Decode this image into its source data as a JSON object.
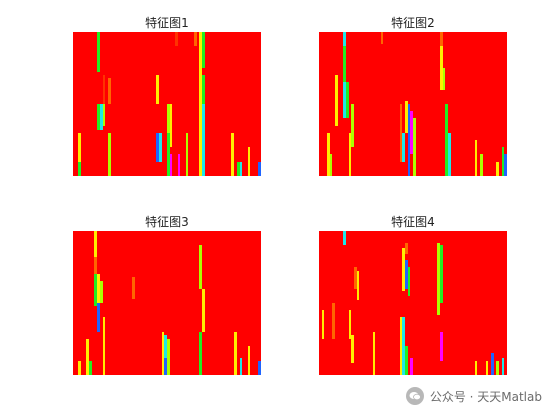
{
  "chart_data": [
    {
      "type": "heatmap",
      "title": "特征图1",
      "background_color": "#ff0000",
      "columns": 70,
      "rows": 100,
      "cells": [
        {
          "col": 9,
          "row": 0,
          "len": 28,
          "color": "#22ee22"
        },
        {
          "col": 38,
          "row": 0,
          "len": 10,
          "color": "#ff3300"
        },
        {
          "col": 45,
          "row": 0,
          "len": 10,
          "color": "#ff6600"
        },
        {
          "col": 47,
          "row": 0,
          "len": 100,
          "color": "#ffee00"
        },
        {
          "col": 48,
          "row": 0,
          "len": 25,
          "color": "#22ee22"
        },
        {
          "col": 11,
          "row": 30,
          "len": 20,
          "color": "#ff3300"
        },
        {
          "col": 13,
          "row": 32,
          "len": 18,
          "color": "#ff6600"
        },
        {
          "col": 31,
          "row": 30,
          "len": 20,
          "color": "#ffee00"
        },
        {
          "col": 48,
          "row": 30,
          "len": 22,
          "color": "#22ee22"
        },
        {
          "col": 9,
          "row": 50,
          "len": 18,
          "color": "#22ee22"
        },
        {
          "col": 10,
          "row": 50,
          "len": 18,
          "color": "#1ee8e8"
        },
        {
          "col": 11,
          "row": 50,
          "len": 15,
          "color": "#aaff00"
        },
        {
          "col": 35,
          "row": 50,
          "len": 20,
          "color": "#aaff00"
        },
        {
          "col": 36,
          "row": 50,
          "len": 30,
          "color": "#ffee00"
        },
        {
          "col": 48,
          "row": 50,
          "len": 50,
          "color": "#1ee8e8"
        },
        {
          "col": 2,
          "row": 70,
          "len": 30,
          "color": "#ffee00"
        },
        {
          "col": 13,
          "row": 70,
          "len": 30,
          "color": "#aaff00"
        },
        {
          "col": 31,
          "row": 70,
          "len": 20,
          "color": "#1e64ff"
        },
        {
          "col": 32,
          "row": 70,
          "len": 20,
          "color": "#1ee8e8"
        },
        {
          "col": 35,
          "row": 70,
          "len": 30,
          "color": "#22ee22"
        },
        {
          "col": 36,
          "row": 85,
          "len": 15,
          "color": "#ff00ff"
        },
        {
          "col": 42,
          "row": 70,
          "len": 30,
          "color": "#aaff00"
        },
        {
          "col": 59,
          "row": 70,
          "len": 30,
          "color": "#ffee00"
        },
        {
          "col": 65,
          "row": 80,
          "len": 20,
          "color": "#ffee00"
        },
        {
          "col": 2,
          "row": 90,
          "len": 10,
          "color": "#22ee22"
        },
        {
          "col": 39,
          "row": 85,
          "len": 15,
          "color": "#ff00ff"
        },
        {
          "col": 61,
          "row": 90,
          "len": 10,
          "color": "#22ee22"
        },
        {
          "col": 62,
          "row": 90,
          "len": 10,
          "color": "#1ee8e8"
        },
        {
          "col": 69,
          "row": 90,
          "len": 10,
          "color": "#1e64ff"
        }
      ]
    },
    {
      "type": "heatmap",
      "title": "特征图2",
      "background_color": "#ff0000",
      "columns": 70,
      "rows": 100,
      "cells": [
        {
          "col": 9,
          "row": 0,
          "len": 10,
          "color": "#1ee8e8"
        },
        {
          "col": 9,
          "row": 10,
          "len": 25,
          "color": "#22ee22"
        },
        {
          "col": 23,
          "row": 0,
          "len": 8,
          "color": "#ff6600"
        },
        {
          "col": 45,
          "row": 0,
          "len": 10,
          "color": "#ff6600"
        },
        {
          "col": 45,
          "row": 10,
          "len": 30,
          "color": "#ffee00"
        },
        {
          "col": 46,
          "row": 25,
          "len": 15,
          "color": "#aaff00"
        },
        {
          "col": 6,
          "row": 30,
          "len": 35,
          "color": "#ffee00"
        },
        {
          "col": 9,
          "row": 35,
          "len": 25,
          "color": "#1ee8e8"
        },
        {
          "col": 10,
          "row": 35,
          "len": 25,
          "color": "#22ee22"
        },
        {
          "col": 12,
          "row": 50,
          "len": 30,
          "color": "#aaff00"
        },
        {
          "col": 11,
          "row": 70,
          "len": 30,
          "color": "#ffee00"
        },
        {
          "col": 30,
          "row": 50,
          "len": 40,
          "color": "#ff6600"
        },
        {
          "col": 32,
          "row": 48,
          "len": 22,
          "color": "#ffee00"
        },
        {
          "col": 33,
          "row": 50,
          "len": 50,
          "color": "#1e64ff"
        },
        {
          "col": 34,
          "row": 55,
          "len": 30,
          "color": "#ff00ff"
        },
        {
          "col": 31,
          "row": 70,
          "len": 20,
          "color": "#1ee8e8"
        },
        {
          "col": 35,
          "row": 60,
          "len": 40,
          "color": "#aaff00"
        },
        {
          "col": 47,
          "row": 50,
          "len": 50,
          "color": "#22ee22"
        },
        {
          "col": 3,
          "row": 70,
          "len": 30,
          "color": "#ffee00"
        },
        {
          "col": 4,
          "row": 85,
          "len": 15,
          "color": "#aaff00"
        },
        {
          "col": 48,
          "row": 70,
          "len": 30,
          "color": "#1ee8e8"
        },
        {
          "col": 58,
          "row": 75,
          "len": 25,
          "color": "#ffee00"
        },
        {
          "col": 60,
          "row": 85,
          "len": 15,
          "color": "#aaff00"
        },
        {
          "col": 66,
          "row": 90,
          "len": 10,
          "color": "#ffee00"
        },
        {
          "col": 68,
          "row": 80,
          "len": 20,
          "color": "#22ee22"
        },
        {
          "col": 69,
          "row": 85,
          "len": 15,
          "color": "#1e64ff"
        }
      ]
    },
    {
      "type": "heatmap",
      "title": "特征图3",
      "background_color": "#ff0000",
      "columns": 70,
      "rows": 100,
      "cells": [
        {
          "col": 8,
          "row": 0,
          "len": 18,
          "color": "#ffee00"
        },
        {
          "col": 8,
          "row": 18,
          "len": 12,
          "color": "#ff6600"
        },
        {
          "col": 47,
          "row": 10,
          "len": 30,
          "color": "#aaff00"
        },
        {
          "col": 8,
          "row": 30,
          "len": 22,
          "color": "#22ee22"
        },
        {
          "col": 9,
          "row": 30,
          "len": 20,
          "color": "#ffee00"
        },
        {
          "col": 10,
          "row": 35,
          "len": 15,
          "color": "#aaff00"
        },
        {
          "col": 22,
          "row": 32,
          "len": 15,
          "color": "#ff6600"
        },
        {
          "col": 48,
          "row": 40,
          "len": 30,
          "color": "#ffee00"
        },
        {
          "col": 9,
          "row": 50,
          "len": 20,
          "color": "#1e64ff"
        },
        {
          "col": 11,
          "row": 60,
          "len": 40,
          "color": "#ffee00"
        },
        {
          "col": 33,
          "row": 70,
          "len": 30,
          "color": "#ffee00"
        },
        {
          "col": 34,
          "row": 72,
          "len": 20,
          "color": "#1ee8e8"
        },
        {
          "col": 35,
          "row": 75,
          "len": 25,
          "color": "#aaff00"
        },
        {
          "col": 47,
          "row": 70,
          "len": 30,
          "color": "#22ee22"
        },
        {
          "col": 5,
          "row": 75,
          "len": 25,
          "color": "#ffee00"
        },
        {
          "col": 34,
          "row": 88,
          "len": 12,
          "color": "#1e64ff"
        },
        {
          "col": 60,
          "row": 70,
          "len": 30,
          "color": "#ffee00"
        },
        {
          "col": 65,
          "row": 80,
          "len": 20,
          "color": "#ffee00"
        },
        {
          "col": 2,
          "row": 90,
          "len": 10,
          "color": "#ffee00"
        },
        {
          "col": 6,
          "row": 90,
          "len": 10,
          "color": "#22ee22"
        },
        {
          "col": 62,
          "row": 88,
          "len": 12,
          "color": "#1ee8e8"
        },
        {
          "col": 69,
          "row": 90,
          "len": 10,
          "color": "#1e64ff"
        }
      ]
    },
    {
      "type": "heatmap",
      "title": "特征图4",
      "background_color": "#ff0000",
      "columns": 70,
      "rows": 100,
      "cells": [
        {
          "col": 9,
          "row": 0,
          "len": 10,
          "color": "#1ee8e8"
        },
        {
          "col": 32,
          "row": 8,
          "len": 8,
          "color": "#ff6600"
        },
        {
          "col": 44,
          "row": 8,
          "len": 50,
          "color": "#aaff00"
        },
        {
          "col": 45,
          "row": 10,
          "len": 40,
          "color": "#22ee22"
        },
        {
          "col": 31,
          "row": 12,
          "len": 30,
          "color": "#ffee00"
        },
        {
          "col": 32,
          "row": 20,
          "len": 20,
          "color": "#1e64ff"
        },
        {
          "col": 33,
          "row": 25,
          "len": 20,
          "color": "#22ee22"
        },
        {
          "col": 13,
          "row": 25,
          "len": 15,
          "color": "#ff6600"
        },
        {
          "col": 14,
          "row": 28,
          "len": 20,
          "color": "#ffee00"
        },
        {
          "col": 1,
          "row": 55,
          "len": 20,
          "color": "#ffee00"
        },
        {
          "col": 5,
          "row": 50,
          "len": 25,
          "color": "#ff6600"
        },
        {
          "col": 11,
          "row": 55,
          "len": 20,
          "color": "#ffee00"
        },
        {
          "col": 12,
          "row": 72,
          "len": 20,
          "color": "#ffee00"
        },
        {
          "col": 20,
          "row": 70,
          "len": 30,
          "color": "#ffee00"
        },
        {
          "col": 30,
          "row": 60,
          "len": 40,
          "color": "#ffee00"
        },
        {
          "col": 31,
          "row": 60,
          "len": 40,
          "color": "#1ee8e8"
        },
        {
          "col": 32,
          "row": 80,
          "len": 20,
          "color": "#22ee22"
        },
        {
          "col": 34,
          "row": 88,
          "len": 12,
          "color": "#ff00ff"
        },
        {
          "col": 45,
          "row": 70,
          "len": 20,
          "color": "#ff00ff"
        },
        {
          "col": 58,
          "row": 90,
          "len": 10,
          "color": "#ffee00"
        },
        {
          "col": 62,
          "row": 90,
          "len": 10,
          "color": "#ffee00"
        },
        {
          "col": 64,
          "row": 85,
          "len": 15,
          "color": "#1e64ff"
        },
        {
          "col": 66,
          "row": 90,
          "len": 10,
          "color": "#aaff00"
        },
        {
          "col": 68,
          "row": 88,
          "len": 12,
          "color": "#1ee8e8"
        }
      ]
    }
  ],
  "watermark": {
    "text": "公众号 · 天天Matlab",
    "icon": "wechat-icon"
  }
}
